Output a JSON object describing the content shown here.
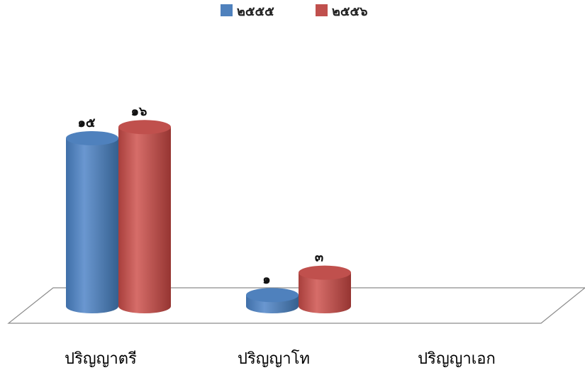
{
  "chart_data": {
    "type": "bar",
    "title": "",
    "xlabel": "",
    "ylabel": "",
    "categories": [
      "ปริญญาตรี",
      "ปริญญาโท",
      "ปริญญาเอก"
    ],
    "series": [
      {
        "name": "๒๕๕๕",
        "color": "#4f81bd",
        "values": [
          15,
          1,
          0
        ],
        "labels": [
          "๑๕",
          "๑",
          ""
        ]
      },
      {
        "name": "๒๕๕๖",
        "color": "#c0504d",
        "values": [
          16,
          3,
          0
        ],
        "labels": [
          "๑๖",
          "๓",
          ""
        ]
      }
    ],
    "ylim": [
      0,
      16
    ],
    "grid": false,
    "legend": "top-center",
    "style": "3d-cylinder"
  }
}
